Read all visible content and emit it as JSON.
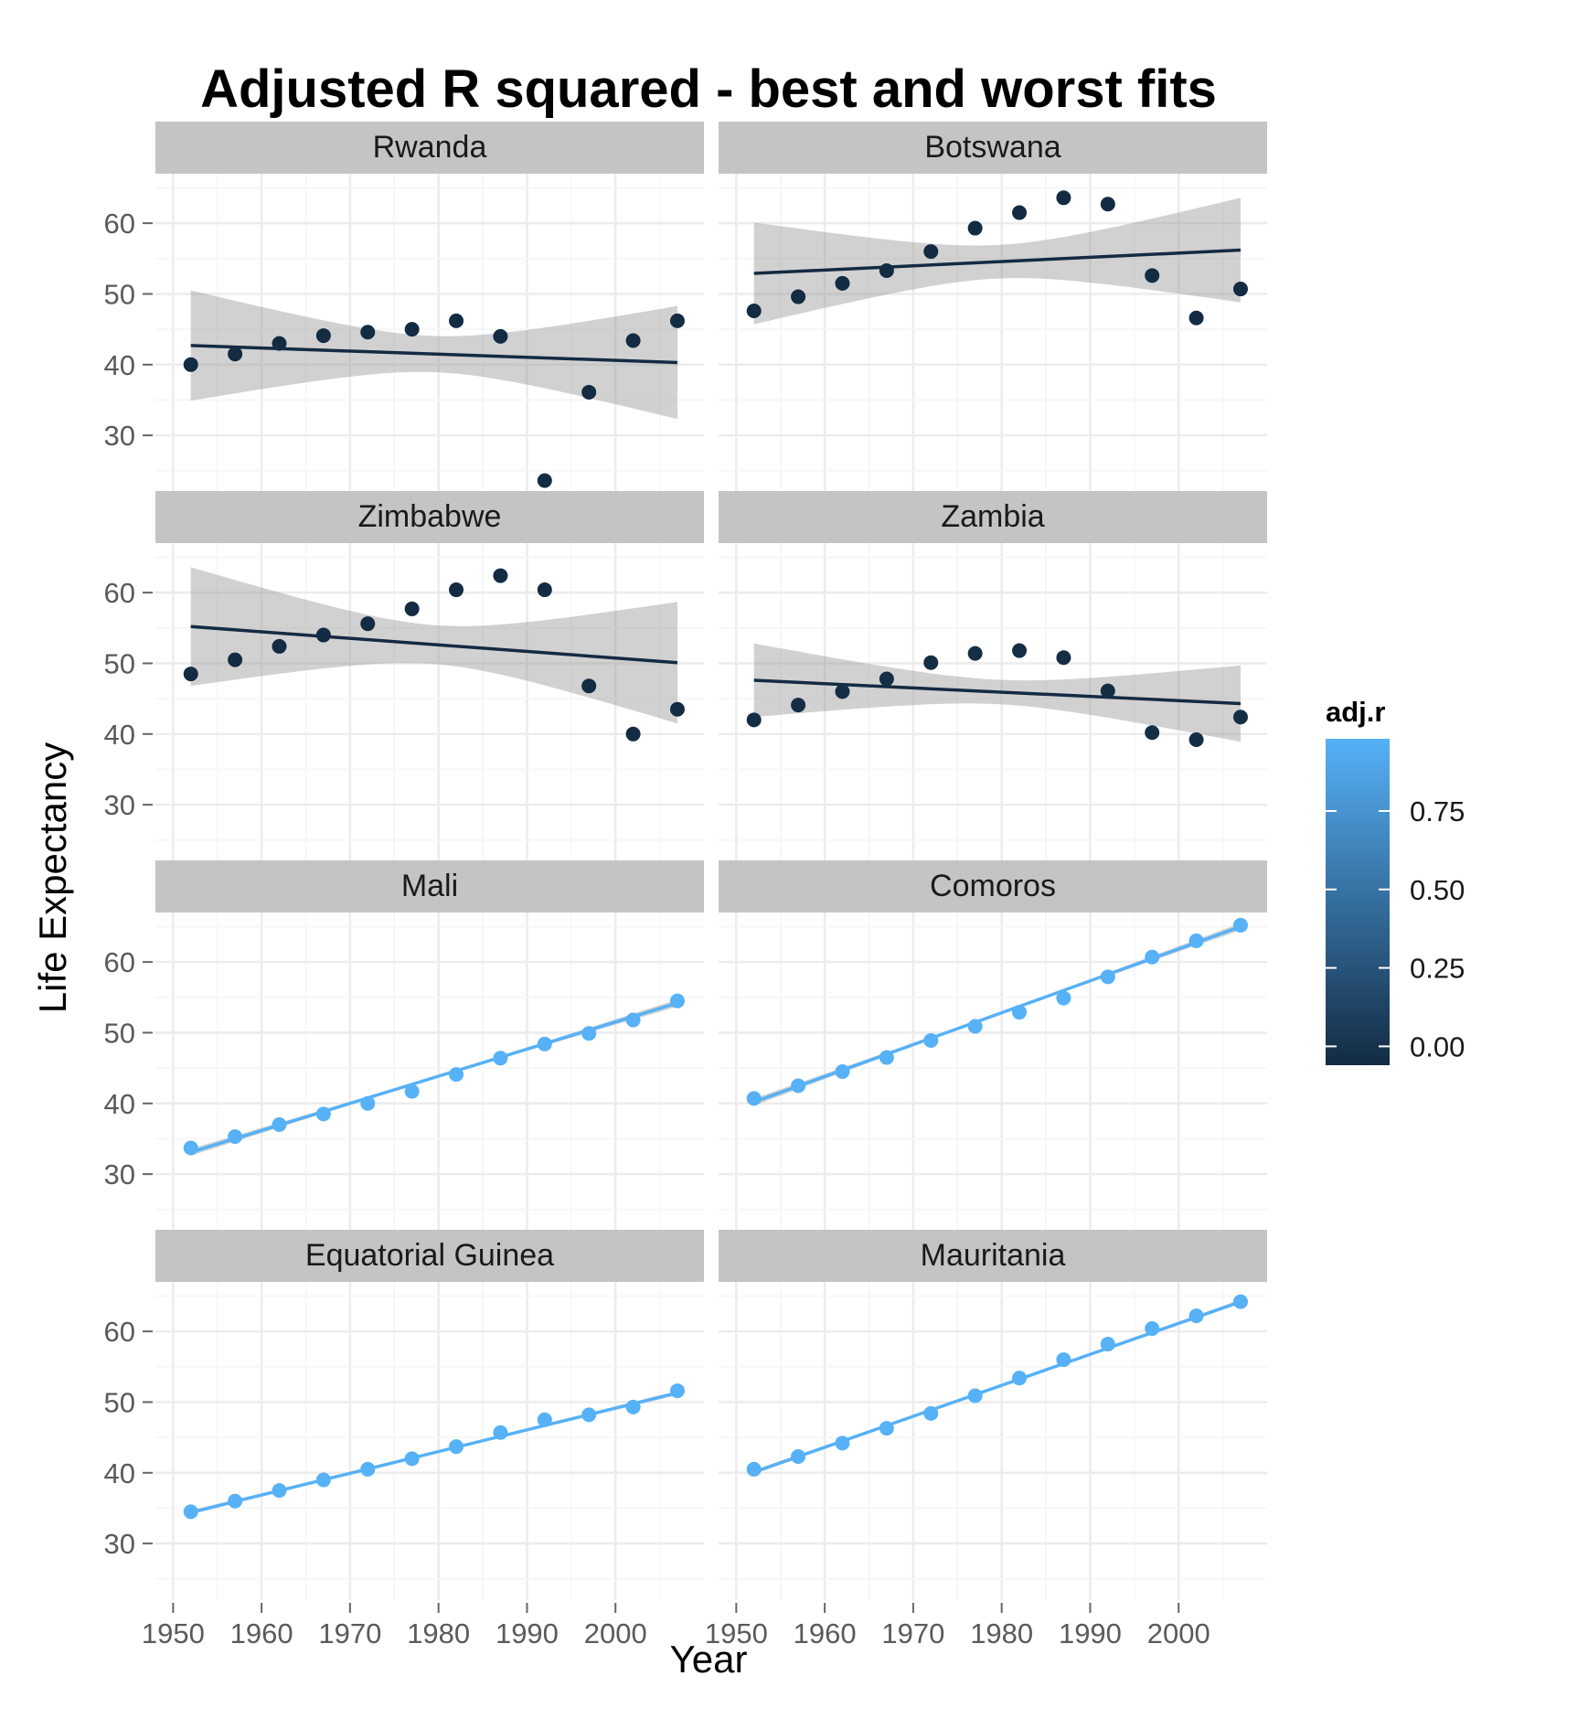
{
  "chart_data": {
    "type": "scatter",
    "title": "Adjusted R squared - best and worst fits",
    "xlabel": "Year",
    "ylabel": "Life Expectancy",
    "xlim": [
      1948,
      2010
    ],
    "ylim": [
      22,
      67
    ],
    "x_ticks": [
      1950,
      1960,
      1970,
      1980,
      1990,
      2000
    ],
    "y_ticks": [
      30,
      40,
      50,
      60
    ],
    "layout": "facet_wrap 2 columns",
    "legend": {
      "title": "adj.r",
      "placement": "right",
      "limits": [
        -0.06,
        0.98
      ],
      "ticks": [
        0,
        0.25,
        0.5,
        0.75
      ],
      "tick_labels": [
        "0.00",
        "0.25",
        "0.50",
        "0.75"
      ],
      "low_color": "#132B43",
      "high_color": "#56B1F7"
    },
    "smoothing": "linear fit with confidence band",
    "x": [
      1952,
      1957,
      1962,
      1967,
      1972,
      1977,
      1982,
      1987,
      1992,
      1997,
      2002,
      2007
    ],
    "panels": [
      {
        "name": "Rwanda",
        "adj_r": -0.08,
        "values": [
          40.0,
          41.5,
          43.0,
          44.1,
          44.6,
          45.0,
          46.2,
          44.0,
          23.6,
          36.1,
          43.4,
          46.2
        ],
        "fit": [
          42.7,
          40.3
        ],
        "band": [
          7.8,
          8.0
        ]
      },
      {
        "name": "Botswana",
        "adj_r": -0.08,
        "values": [
          47.6,
          49.6,
          51.5,
          53.3,
          56.0,
          59.3,
          61.5,
          63.6,
          62.7,
          52.6,
          46.6,
          50.7
        ],
        "fit": [
          52.9,
          56.2
        ],
        "band": [
          7.2,
          7.4
        ]
      },
      {
        "name": "Zimbabwe",
        "adj_r": -0.06,
        "values": [
          48.5,
          50.5,
          52.4,
          54.0,
          55.6,
          57.7,
          60.4,
          62.4,
          60.4,
          46.8,
          40.0,
          43.5
        ],
        "fit": [
          55.2,
          50.1
        ],
        "band": [
          8.4,
          8.6
        ]
      },
      {
        "name": "Zambia",
        "adj_r": -0.04,
        "values": [
          42.0,
          44.1,
          46.0,
          47.8,
          50.1,
          51.4,
          51.8,
          50.8,
          46.1,
          40.2,
          39.2,
          42.4
        ],
        "fit": [
          47.6,
          44.3
        ],
        "band": [
          5.2,
          5.4
        ]
      },
      {
        "name": "Mali",
        "adj_r": 0.98,
        "values": [
          33.7,
          35.3,
          37.0,
          38.5,
          40.0,
          41.7,
          44.1,
          46.4,
          48.4,
          49.9,
          51.8,
          54.5
        ],
        "fit": [
          33.1,
          54.2
        ],
        "band": [
          0.5,
          0.5
        ]
      },
      {
        "name": "Comoros",
        "adj_r": 0.98,
        "values": [
          40.7,
          42.5,
          44.5,
          46.5,
          48.9,
          50.9,
          52.9,
          54.9,
          57.9,
          60.7,
          63.0,
          65.2
        ],
        "fit": [
          40.2,
          65.0
        ],
        "band": [
          0.5,
          0.5
        ]
      },
      {
        "name": "Equatorial Guinea",
        "adj_r": 0.99,
        "values": [
          34.5,
          36.0,
          37.5,
          39.0,
          40.5,
          42.0,
          43.7,
          45.7,
          47.5,
          48.2,
          49.3,
          51.6
        ],
        "fit": [
          34.4,
          51.3
        ],
        "band": [
          0.3,
          0.3
        ]
      },
      {
        "name": "Mauritania",
        "adj_r": 0.99,
        "values": [
          40.5,
          42.3,
          44.2,
          46.3,
          48.4,
          50.9,
          53.4,
          56.0,
          58.2,
          60.4,
          62.2,
          64.2
        ],
        "fit": [
          40.1,
          64.2
        ],
        "band": [
          0.3,
          0.3
        ]
      }
    ]
  }
}
